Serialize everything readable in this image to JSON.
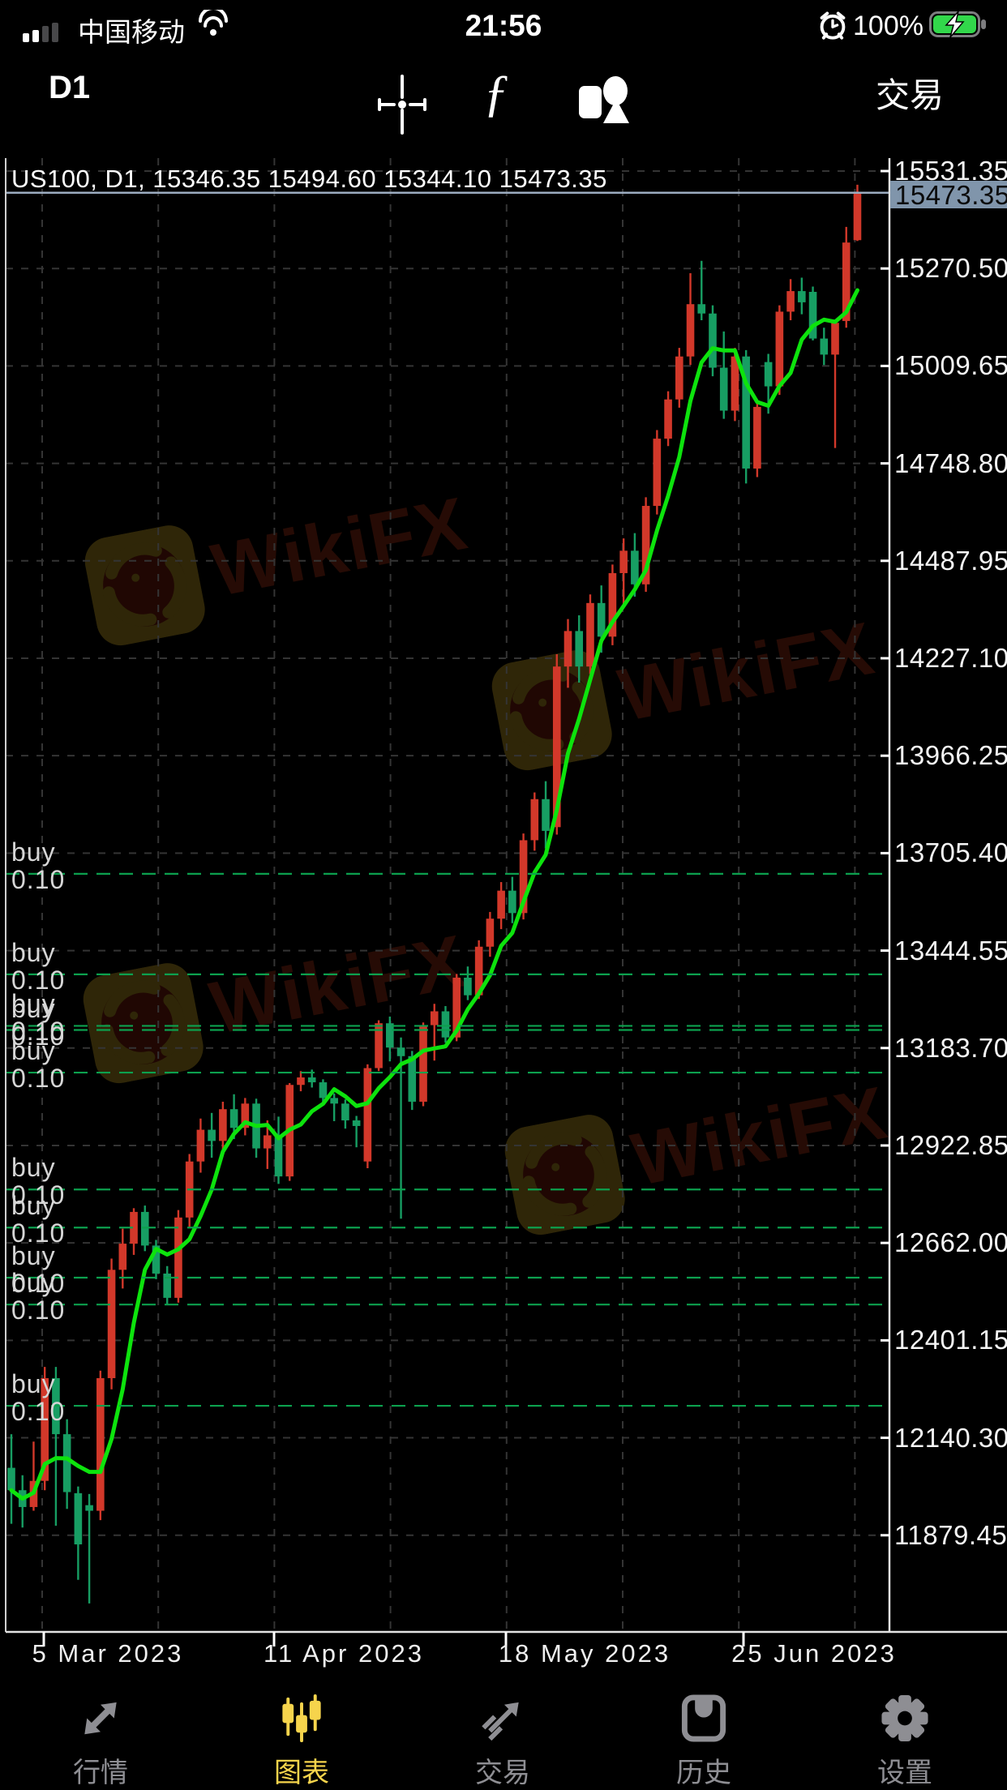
{
  "status_bar": {
    "carrier": "中国移动",
    "time": "21:56",
    "battery_percent": "100%",
    "icons": [
      "signal-bars-icon",
      "wifi-icon",
      "alarm-clock-icon",
      "battery-charging-icon"
    ]
  },
  "toolbar": {
    "timeframe": "D1",
    "trade": "交易",
    "icons": [
      "crosshair-icon",
      "indicator-function-icon",
      "chart-objects-icon"
    ]
  },
  "chart": {
    "header": "US100, D1, 15346.35 15494.60 15344.10 15473.35",
    "current_price": "15473.35",
    "watermark_text": "WikiFX",
    "buy_positions": [
      {
        "label": "buy 0.10",
        "price": 13650
      },
      {
        "label": "buy 0.10",
        "price": 13381
      },
      {
        "label": "buy 0.10",
        "price": 13243
      },
      {
        "label": "buy 0.10",
        "price": 13232
      },
      {
        "label": "buy 0.10",
        "price": 13118
      },
      {
        "label": "buy 0.10",
        "price": 12805
      },
      {
        "label": "buy 0.10",
        "price": 12703
      },
      {
        "label": "buy 0.10",
        "price": 12569
      },
      {
        "label": "buy 0.10",
        "price": 12497
      },
      {
        "label": "buy 0.10",
        "price": 12226
      }
    ]
  },
  "chart_data": {
    "type": "candlestick",
    "symbol": "US100",
    "timeframe": "D1",
    "title": "US100, D1, 15346.35 15494.60 15344.10 15473.35",
    "last_bar": {
      "open": 15346.35,
      "high": 15494.6,
      "low": 15344.1,
      "close": 15473.35
    },
    "ylim": [
      11620,
      15566
    ],
    "grid": true,
    "y_ticks": [
      "15531.35",
      "15270.50",
      "15009.65",
      "14748.80",
      "14487.95",
      "14227.10",
      "13966.25",
      "13705.40",
      "13444.55",
      "13183.70",
      "12922.85",
      "12662.00",
      "12401.15",
      "12140.30",
      "11879.45"
    ],
    "x_labels": [
      "5 Mar 2023",
      "11 Apr 2023",
      "18 May 2023",
      "25 Jun 2023"
    ],
    "ma_period": 5,
    "colors": {
      "up": "#d2382a",
      "down": "#179e63",
      "ma": "#0de30d",
      "grid": "#343434",
      "buy_line": "#0ca04e",
      "price_line": "#9cacc0",
      "price_tag_bg": "#8095ab",
      "axis_text": "#f5f5f5"
    },
    "candles": [
      [
        12060,
        12150,
        11910,
        12000
      ],
      [
        12000,
        12040,
        11900,
        11955
      ],
      [
        11955,
        12130,
        11945,
        12025
      ],
      [
        12025,
        12330,
        12000,
        12300
      ],
      [
        12300,
        12330,
        11905,
        12150
      ],
      [
        12150,
        12190,
        11950,
        11995
      ],
      [
        11992,
        12010,
        11760,
        11855
      ],
      [
        11960,
        11990,
        11697,
        11945
      ],
      [
        11945,
        12320,
        11920,
        12300
      ],
      [
        12300,
        12620,
        12270,
        12590
      ],
      [
        12590,
        12700,
        12540,
        12660
      ],
      [
        12660,
        12755,
        12630,
        12745
      ],
      [
        12745,
        12762,
        12640,
        12655
      ],
      [
        12655,
        12670,
        12565,
        12580
      ],
      [
        12580,
        12600,
        12498,
        12515
      ],
      [
        12515,
        12750,
        12502,
        12730
      ],
      [
        12730,
        12900,
        12705,
        12880
      ],
      [
        12880,
        12995,
        12850,
        12965
      ],
      [
        12965,
        13010,
        12890,
        12935
      ],
      [
        12935,
        13040,
        12905,
        13020
      ],
      [
        13020,
        13060,
        12940,
        12970
      ],
      [
        12970,
        13050,
        12950,
        13035
      ],
      [
        13035,
        13048,
        12890,
        12915
      ],
      [
        12915,
        12990,
        12860,
        12950
      ],
      [
        12950,
        13000,
        12820,
        12840
      ],
      [
        12840,
        13090,
        12828,
        13085
      ],
      [
        13085,
        13122,
        13068,
        13105
      ],
      [
        13105,
        13126,
        13078,
        13092
      ],
      [
        13092,
        13100,
        13038,
        13050
      ],
      [
        13050,
        13062,
        12988,
        13035
      ],
      [
        13035,
        13046,
        12968,
        12990
      ],
      [
        12990,
        13002,
        12918,
        12975
      ],
      [
        12880,
        13140,
        12862,
        13130
      ],
      [
        13130,
        13258,
        13122,
        13250
      ],
      [
        13250,
        13268,
        13148,
        13185
      ],
      [
        13185,
        13212,
        12727,
        13162
      ],
      [
        13162,
        13176,
        13018,
        13040
      ],
      [
        13040,
        13252,
        13028,
        13245
      ],
      [
        13245,
        13302,
        13150,
        13282
      ],
      [
        13282,
        13296,
        13198,
        13212
      ],
      [
        13212,
        13382,
        13202,
        13372
      ],
      [
        13372,
        13402,
        13312,
        13325
      ],
      [
        13325,
        13472,
        13315,
        13455
      ],
      [
        13455,
        13548,
        13428,
        13530
      ],
      [
        13530,
        13628,
        13502,
        13605
      ],
      [
        13605,
        13642,
        13518,
        13545
      ],
      [
        13545,
        13758,
        13528,
        13740
      ],
      [
        13740,
        13868,
        13712,
        13850
      ],
      [
        13850,
        13898,
        13718,
        13765
      ],
      [
        13775,
        14238,
        13755,
        14205
      ],
      [
        14205,
        14332,
        14148,
        14300
      ],
      [
        14300,
        14342,
        14162,
        14205
      ],
      [
        14205,
        14398,
        14185,
        14375
      ],
      [
        14375,
        14422,
        14242,
        14285
      ],
      [
        14285,
        14478,
        14262,
        14455
      ],
      [
        14455,
        14548,
        14372,
        14515
      ],
      [
        14515,
        14562,
        14392,
        14425
      ],
      [
        14425,
        14658,
        14405,
        14635
      ],
      [
        14635,
        14838,
        14612,
        14815
      ],
      [
        14815,
        14942,
        14795,
        14920
      ],
      [
        14920,
        15058,
        14898,
        15035
      ],
      [
        15035,
        15258,
        15012,
        15175
      ],
      [
        15175,
        15291,
        15132,
        15150
      ],
      [
        15150,
        15172,
        14982,
        15005
      ],
      [
        15005,
        15102,
        14868,
        14890
      ],
      [
        14890,
        15058,
        14862,
        15035
      ],
      [
        15035,
        15052,
        14695,
        14735
      ],
      [
        14735,
        14912,
        14712,
        14900
      ],
      [
        15020,
        15042,
        14882,
        14955
      ],
      [
        14955,
        15172,
        14932,
        15155
      ],
      [
        15155,
        15242,
        15132,
        15210
      ],
      [
        15210,
        15246,
        15148,
        15180
      ],
      [
        15208,
        15222,
        15078,
        15083
      ],
      [
        15083,
        15112,
        15012,
        15040
      ],
      [
        15040,
        15132,
        14790,
        15125
      ],
      [
        15130,
        15382,
        15112,
        15340
      ],
      [
        15346.35,
        15494.6,
        15344.1,
        15473.35
      ]
    ]
  },
  "tab_bar": {
    "active_color": "#f6d44c",
    "inactive_color": "#8e8e93",
    "items": [
      {
        "label": "行情",
        "icon": "quotes-arrows-icon",
        "active": false
      },
      {
        "label": "图表",
        "icon": "candlestick-chart-icon",
        "active": true
      },
      {
        "label": "交易",
        "icon": "trade-arrow-icon",
        "active": false
      },
      {
        "label": "历史",
        "icon": "history-box-icon",
        "active": false
      },
      {
        "label": "设置",
        "icon": "gear-icon",
        "active": false
      }
    ]
  }
}
